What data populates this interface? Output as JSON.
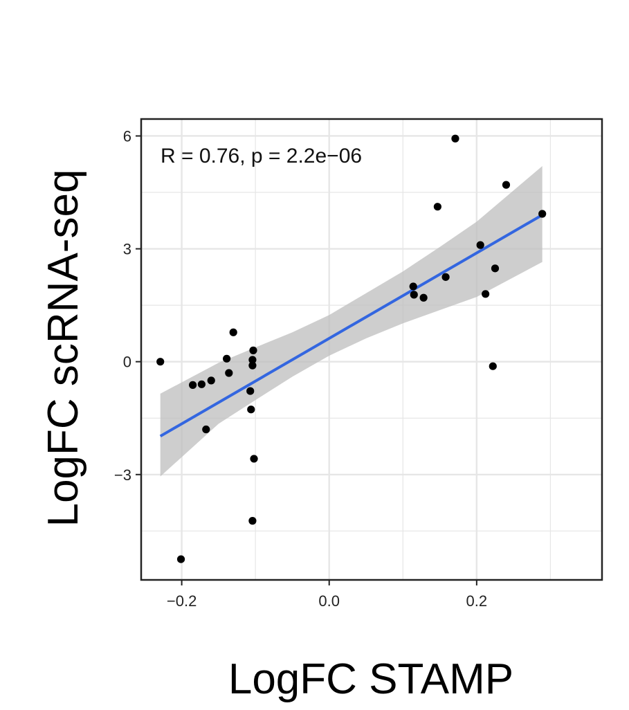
{
  "chart_data": {
    "type": "scatter",
    "title": "",
    "xlabel": "LogFC STAMP",
    "ylabel": "LogFC scRNA-seq",
    "annotation": "R = 0.76, p = 2.2e−06",
    "xlim": [
      -0.255,
      0.37
    ],
    "ylim": [
      -5.8,
      6.45
    ],
    "x_ticks": [
      -0.2,
      0.0,
      0.2
    ],
    "x_tick_labels": [
      "−0.2",
      "0.0",
      "0.2"
    ],
    "y_ticks": [
      -3,
      0,
      3,
      6
    ],
    "y_tick_labels": [
      "−3",
      "0",
      "3",
      "6"
    ],
    "grid": true,
    "points": [
      {
        "x": -0.229,
        "y": 0.0
      },
      {
        "x": -0.201,
        "y": -5.25
      },
      {
        "x": -0.185,
        "y": -0.62
      },
      {
        "x": -0.173,
        "y": -0.6
      },
      {
        "x": -0.167,
        "y": -1.8
      },
      {
        "x": -0.16,
        "y": -0.5
      },
      {
        "x": -0.139,
        "y": 0.08
      },
      {
        "x": -0.136,
        "y": -0.3
      },
      {
        "x": -0.13,
        "y": 0.78
      },
      {
        "x": -0.107,
        "y": -0.78
      },
      {
        "x": -0.106,
        "y": -1.27
      },
      {
        "x": -0.104,
        "y": 0.05
      },
      {
        "x": -0.104,
        "y": -0.1
      },
      {
        "x": -0.103,
        "y": 0.3
      },
      {
        "x": -0.102,
        "y": -2.58
      },
      {
        "x": -0.104,
        "y": -4.23
      },
      {
        "x": 0.114,
        "y": 2.0
      },
      {
        "x": 0.115,
        "y": 1.78
      },
      {
        "x": 0.128,
        "y": 1.7
      },
      {
        "x": 0.147,
        "y": 4.12
      },
      {
        "x": 0.158,
        "y": 2.25
      },
      {
        "x": 0.171,
        "y": 5.93
      },
      {
        "x": 0.205,
        "y": 3.1
      },
      {
        "x": 0.212,
        "y": 1.8
      },
      {
        "x": 0.222,
        "y": -0.12
      },
      {
        "x": 0.225,
        "y": 2.48
      },
      {
        "x": 0.24,
        "y": 4.7
      },
      {
        "x": 0.289,
        "y": 3.93
      }
    ],
    "fit_line": {
      "x": [
        -0.229,
        0.289
      ],
      "y": [
        -1.98,
        3.9
      ]
    },
    "confidence_band": {
      "x": [
        -0.229,
        -0.15,
        -0.1,
        -0.05,
        0.0,
        0.05,
        0.1,
        0.15,
        0.2,
        0.289
      ],
      "upper": [
        -0.85,
        -0.03,
        0.38,
        0.78,
        1.24,
        1.82,
        2.4,
        3.05,
        3.72,
        5.2
      ],
      "lower": [
        -3.05,
        -1.65,
        -1.02,
        -0.4,
        0.16,
        0.62,
        1.02,
        1.37,
        1.72,
        2.65
      ]
    },
    "colors": {
      "points": "#000000",
      "fit_line": "#3366e0",
      "band": "#bdbdbd",
      "grid": "#e6e6e6",
      "frame": "#222222"
    }
  }
}
